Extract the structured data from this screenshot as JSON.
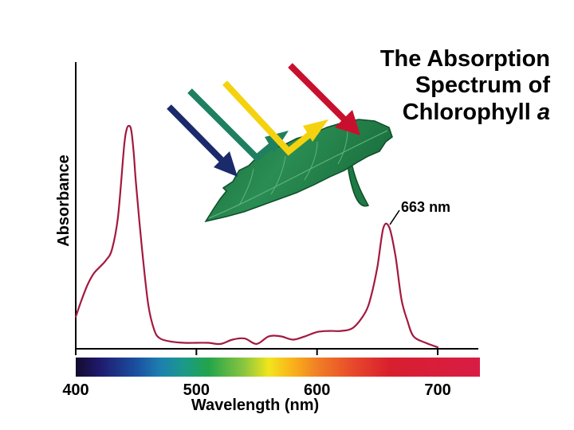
{
  "chart_data": {
    "type": "line",
    "title_lines": [
      "The Absorption",
      "Spectrum of",
      "Chlorophyll "
    ],
    "title_italic": "a",
    "xlabel": "Wavelength (nm)",
    "ylabel": "Absorbance",
    "xlim": [
      400,
      735
    ],
    "ylim": [
      0,
      1
    ],
    "x_ticks": [
      400,
      500,
      600,
      700
    ],
    "x_tick_labels": [
      "400",
      "500",
      "600",
      "700"
    ],
    "grid": false,
    "series": [
      {
        "color": "#a3193f",
        "x": [
          400,
          405,
          410,
          415,
          420,
          425,
          430,
          435,
          440,
          442,
          444,
          446,
          448,
          450,
          455,
          460,
          465,
          470,
          480,
          490,
          500,
          510,
          520,
          530,
          540,
          550,
          560,
          570,
          580,
          590,
          600,
          610,
          620,
          630,
          640,
          645,
          650,
          655,
          660,
          665,
          670,
          675,
          680,
          690,
          700
        ],
        "y": [
          0.14,
          0.22,
          0.29,
          0.34,
          0.37,
          0.4,
          0.45,
          0.6,
          0.92,
          1.0,
          1.02,
          1.0,
          0.9,
          0.75,
          0.45,
          0.2,
          0.08,
          0.04,
          0.025,
          0.02,
          0.02,
          0.02,
          0.015,
          0.035,
          0.04,
          0.015,
          0.05,
          0.05,
          0.035,
          0.05,
          0.07,
          0.075,
          0.075,
          0.09,
          0.16,
          0.24,
          0.37,
          0.55,
          0.55,
          0.42,
          0.22,
          0.12,
          0.05,
          0.02,
          0.0
        ]
      }
    ],
    "annotations": [
      {
        "text": "663 nm",
        "x": 663,
        "y": 0.55
      }
    ],
    "spectrum_bar": {
      "range": [
        400,
        735
      ],
      "stops": [
        {
          "wl": 400,
          "color": "#140a2e"
        },
        {
          "wl": 420,
          "color": "#1f1a6e"
        },
        {
          "wl": 450,
          "color": "#1b4fa0"
        },
        {
          "wl": 470,
          "color": "#1d7fb0"
        },
        {
          "wl": 490,
          "color": "#1b9a8a"
        },
        {
          "wl": 510,
          "color": "#22a44a"
        },
        {
          "wl": 540,
          "color": "#8cc63f"
        },
        {
          "wl": 560,
          "color": "#f2e51c"
        },
        {
          "wl": 580,
          "color": "#f9b11a"
        },
        {
          "wl": 600,
          "color": "#f08025"
        },
        {
          "wl": 630,
          "color": "#e8482a"
        },
        {
          "wl": 660,
          "color": "#d81f2e"
        },
        {
          "wl": 735,
          "color": "#d91c45"
        }
      ]
    },
    "illustration": {
      "leaf_color": "#1e7a44",
      "light_rays": [
        {
          "name": "blue",
          "color": "#1b2a6b"
        },
        {
          "name": "green",
          "color": "#1e8060"
        },
        {
          "name": "yellow",
          "color": "#f5d20f"
        },
        {
          "name": "red",
          "color": "#c8102e"
        }
      ]
    }
  }
}
